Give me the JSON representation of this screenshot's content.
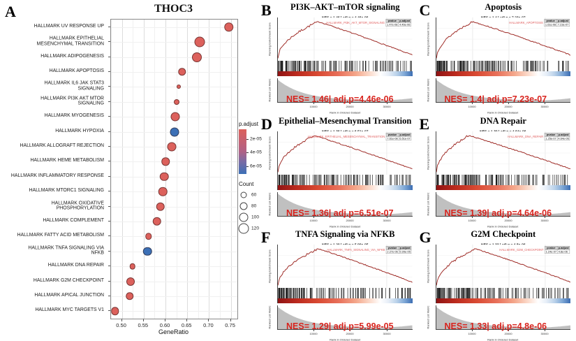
{
  "figure": {
    "panel_a": {
      "label": "A",
      "title": "THOC3",
      "xlabel": "GeneRatio",
      "x_ticks": [
        "0.50",
        "0.55",
        "0.60",
        "0.65",
        "0.70",
        "0.75"
      ],
      "legend_padjust": {
        "title": "p.adjust",
        "ticks": [
          "2e-05",
          "4e-05",
          "6e-05"
        ]
      },
      "legend_count": {
        "title": "Count",
        "items": [
          "60",
          "80",
          "100",
          "120"
        ]
      }
    },
    "colors": {
      "dot_red": "#dc615c",
      "dot_blue": "#3c70b6",
      "curve_red": "#9e2a25",
      "nes_red": "#d8231d",
      "mountain_gray": "#bdbdbd"
    }
  },
  "chart_data": [
    {
      "type": "scatter",
      "panel": "A",
      "title": "THOC3",
      "xlabel": "GeneRatio",
      "xlim": [
        0.475,
        0.765
      ],
      "grid": true,
      "color_legend": {
        "label": "p.adjust",
        "ticks": [
          "2e-05",
          "4e-05",
          "6e-05"
        ],
        "low_color": "#dc615c",
        "high_color": "#3c70b6"
      },
      "size_legend": {
        "label": "Count",
        "ticks": [
          60,
          80,
          100,
          120
        ]
      },
      "points": [
        {
          "label": "HALLMARK UV RESPONSE UP",
          "gene_ratio": 0.745,
          "count": 105,
          "padj": "low"
        },
        {
          "label": "HALLMARK EPITHELIAL\nMESENCHYMAL TRANSITION",
          "gene_ratio": 0.678,
          "count": 120,
          "padj": "low"
        },
        {
          "label": "HALLMARK ADIPOGENESIS",
          "gene_ratio": 0.672,
          "count": 110,
          "padj": "low"
        },
        {
          "label": "HALLMARK APOPTOSIS",
          "gene_ratio": 0.638,
          "count": 85,
          "padj": "low"
        },
        {
          "label": "HALLMARK IL6 JAK STAT3\nSIGNALING",
          "gene_ratio": 0.63,
          "count": 30,
          "padj": "low"
        },
        {
          "label": "HALLMARK PI3K AKT MTOR\nSIGNALING",
          "gene_ratio": 0.625,
          "count": 50,
          "padj": "low"
        },
        {
          "label": "HALLMARK MYOGENESIS",
          "gene_ratio": 0.623,
          "count": 100,
          "padj": "low"
        },
        {
          "label": "HALLMARK HYPOXIA",
          "gene_ratio": 0.621,
          "count": 100,
          "padj": "high"
        },
        {
          "label": "HALLMARK ALLOGRAFT REJECTION",
          "gene_ratio": 0.614,
          "count": 100,
          "padj": "low"
        },
        {
          "label": "HALLMARK HEME METABOLISM",
          "gene_ratio": 0.6,
          "count": 85,
          "padj": "low"
        },
        {
          "label": "HALLMARK INFLAMMATORY RESPONSE",
          "gene_ratio": 0.597,
          "count": 95,
          "padj": "low"
        },
        {
          "label": "HALLMARK MTORC1 SIGNALING",
          "gene_ratio": 0.594,
          "count": 95,
          "padj": "low"
        },
        {
          "label": "HALLMARK OXIDATIVE\nPHOSPHORYLATION",
          "gene_ratio": 0.588,
          "count": 95,
          "padj": "low"
        },
        {
          "label": "HALLMARK COMPLEMENT",
          "gene_ratio": 0.58,
          "count": 95,
          "padj": "low"
        },
        {
          "label": "HALLMARK FATTY ACID METABOLISM",
          "gene_ratio": 0.561,
          "count": 65,
          "padj": "low"
        },
        {
          "label": "HALLMARK TNFA SIGNALING VIA\nNFKB",
          "gene_ratio": 0.559,
          "count": 95,
          "padj": "high"
        },
        {
          "label": "HALLMARK DNA REPAIR",
          "gene_ratio": 0.524,
          "count": 55,
          "padj": "low"
        },
        {
          "label": "HALLMARK G2M CHECKPOINT",
          "gene_ratio": 0.519,
          "count": 90,
          "padj": "low"
        },
        {
          "label": "HALLMARK APICAL JUNCTION",
          "gene_ratio": 0.518,
          "count": 85,
          "padj": "low"
        },
        {
          "label": "HALLMARK MYC TARGETS V1",
          "gene_ratio": 0.484,
          "count": 85,
          "padj": "low"
        }
      ]
    },
    {
      "type": "line",
      "panel": "B",
      "title": "PI3K–AKT–mTOR signaling",
      "subtitle": "NES = 1.46  |  adj.p = 4.46e-06",
      "gene_set": "HALLMARK_PI3K_AKT_MTOR_SIGNALING",
      "stats_table": {
        "headers": [
          "pvalue",
          "p.adjust"
        ],
        "values": [
          "1.47e-08",
          "4.46e-06"
        ]
      },
      "nes": 1.46,
      "adj_p": "4.46e-06",
      "nes_caption": "NES= 1.46| adj.p=4.46e-06",
      "ylabel_top": "Running Enrichment Score",
      "ylabel_bottom": "Ranked List Metric",
      "xlabel": "Rank in Ordered Dataset",
      "x_ticks": [
        "10000",
        "20000",
        "30000"
      ],
      "es_peak_fraction": 0.3,
      "seed": 7
    },
    {
      "type": "line",
      "panel": "C",
      "title": "Apoptosis",
      "subtitle": "NES = 1.4  |  adj.p = 7.23e-07",
      "gene_set": "HALLMARK_APOPTOSIS",
      "stats_table": {
        "headers": [
          "pvalue",
          "p.adjust"
        ],
        "values": [
          "1.61e-08",
          "7.23e-07"
        ]
      },
      "nes": 1.4,
      "adj_p": "7.23e-07",
      "nes_caption": "NES= 1.4| adj.p=7.23e-07",
      "ylabel_top": "Running Enrichment Score",
      "ylabel_bottom": "Ranked List Metric",
      "xlabel": "Rank in Ordered Dataset",
      "x_ticks": [
        "10000",
        "20000",
        "30000"
      ],
      "es_peak_fraction": 0.27,
      "seed": 13
    },
    {
      "type": "line",
      "panel": "D",
      "title": "Epithelial–Mesenchymal Transition",
      "subtitle": "NES = 1.36  |  adj.p = 6.51e-07",
      "gene_set": "HALLMARK_EPITHELIAL_MESENCHYMAL_TRANSITION",
      "stats_table": {
        "headers": [
          "pvalue",
          "p.adjust"
        ],
        "values": [
          "7.61e-08",
          "6.51e-07"
        ]
      },
      "nes": 1.36,
      "adj_p": "6.51e-07",
      "nes_caption": "NES= 1.36| adj.p=6.51e-07",
      "ylabel_top": "Running Enrichment Score",
      "ylabel_bottom": "Ranked List Metric",
      "xlabel": "Rank in Ordered Dataset",
      "x_ticks": [
        "10000",
        "20000",
        "30000"
      ],
      "es_peak_fraction": 0.27,
      "seed": 21
    },
    {
      "type": "line",
      "panel": "E",
      "title": "DNA Repair",
      "subtitle": "NES = 1.39  |  adj.p = 4.64e-06",
      "gene_set": "HALLMARK_DNA_REPAIR",
      "stats_table": {
        "headers": [
          "pvalue",
          "p.adjust"
        ],
        "values": [
          "1.25e-07",
          "4.64e-06"
        ]
      },
      "nes": 1.39,
      "adj_p": "4.64e-06",
      "nes_caption": "NES= 1.39| adj.p=4.64e-06",
      "ylabel_top": "Running Enrichment Score",
      "ylabel_bottom": "Ranked List Metric",
      "xlabel": "Rank in Ordered Dataset",
      "x_ticks": [
        "10000",
        "20000",
        "30000"
      ],
      "es_peak_fraction": 0.24,
      "seed": 5
    },
    {
      "type": "line",
      "panel": "F",
      "title": "TNFA Signaling via NFKB",
      "subtitle": "NES = 1.29  |  adj.p = 5.99e-05",
      "gene_set": "HALLMARK_TNFA_SIGNALING_VIA_NFKB",
      "stats_table": {
        "headers": [
          "pvalue",
          "p.adjust"
        ],
        "values": [
          "2.27e-06",
          "5.99e-05"
        ]
      },
      "nes": 1.29,
      "adj_p": "5.99e-05",
      "nes_caption": "NES= 1.29| adj.p=5.99e-05",
      "ylabel_top": "Running Enrichment Score",
      "ylabel_bottom": "Ranked List Metric",
      "xlabel": "Rank in Ordered Dataset",
      "x_ticks": [
        "10000",
        "20000",
        "30000"
      ],
      "es_peak_fraction": 0.3,
      "seed": 17
    },
    {
      "type": "line",
      "panel": "G",
      "title": "G2M Checkpoint",
      "subtitle": "NES = 1.33  |  adj.p = 4.8e-06",
      "gene_set": "HALLMARK_G2M_CHECKPOINT",
      "stats_table": {
        "headers": [
          "pvalue",
          "p.adjust"
        ],
        "values": [
          "1.24e-07",
          "4.8e-06"
        ]
      },
      "nes": 1.33,
      "adj_p": "4.8e-06",
      "nes_caption": "NES= 1.33| adj.p=4.8e-06",
      "ylabel_top": "Running Enrichment Score",
      "ylabel_bottom": "Ranked List Metric",
      "xlabel": "Rank in Ordered Dataset",
      "x_ticks": [
        "10000",
        "20000",
        "30000"
      ],
      "es_peak_fraction": 0.29,
      "seed": 29
    }
  ]
}
